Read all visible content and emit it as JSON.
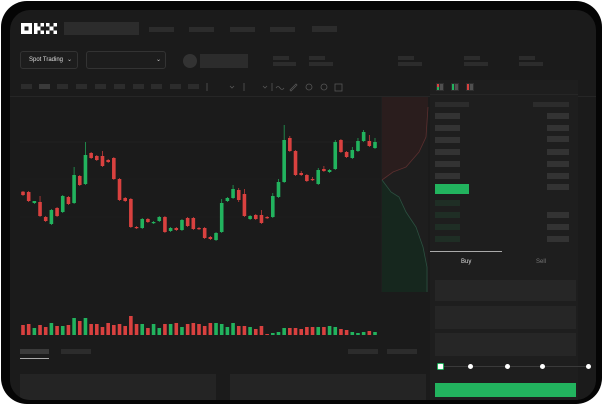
{
  "header": {
    "logo": "OKX"
  },
  "toolbar": {
    "market_selector": "Spot Trading"
  },
  "trade_form": {
    "tabs": [
      {
        "label": "Buy",
        "active": true
      },
      {
        "label": "Sell",
        "active": false
      }
    ],
    "slider_percent": 0,
    "slider_stops": 5
  },
  "colors": {
    "up": "#22b35e",
    "down": "#d9413f",
    "bg": "#1b1b1b",
    "accent": "#22b35e"
  },
  "orderbook": {
    "view_icons": [
      "book-both-icon",
      "book-bids-icon",
      "book-asks-icon"
    ]
  },
  "chart_data": {
    "type": "candlestick",
    "candles": [
      [
        118.3,
        119,
        114,
        115
      ],
      [
        118,
        119,
        108,
        109
      ],
      [
        107,
        109,
        106,
        109
      ],
      [
        108,
        114,
        93,
        94
      ],
      [
        93,
        94,
        88,
        89
      ],
      [
        86,
        101,
        85,
        100
      ],
      [
        102,
        103,
        93,
        94
      ],
      [
        98,
        115,
        97,
        114
      ],
      [
        113,
        114,
        105,
        106
      ],
      [
        107,
        143,
        106,
        135
      ],
      [
        134,
        135,
        124,
        125
      ],
      [
        126,
        168,
        125,
        155
      ],
      [
        157,
        158,
        151,
        152
      ],
      [
        154,
        155,
        149,
        150
      ],
      [
        154,
        159,
        143,
        144
      ],
      [
        150,
        151,
        147,
        148
      ],
      [
        152,
        153,
        130,
        131
      ],
      [
        131,
        132,
        109,
        110
      ],
      [
        112,
        113,
        108,
        109
      ],
      [
        111,
        112,
        82,
        83
      ],
      [
        83,
        84,
        81,
        82
      ],
      [
        82,
        92,
        81,
        91
      ],
      [
        91,
        92,
        87,
        88
      ],
      [
        87,
        89,
        86,
        88
      ],
      [
        89,
        94,
        88,
        93
      ],
      [
        93,
        94,
        77,
        78
      ],
      [
        79,
        83,
        78,
        82
      ],
      [
        82,
        83,
        79,
        80
      ],
      [
        80,
        91,
        79,
        90
      ],
      [
        92,
        93,
        83,
        84
      ],
      [
        92,
        93,
        80,
        81
      ],
      [
        82,
        83,
        80,
        81
      ],
      [
        82,
        83,
        71,
        72
      ],
      [
        73,
        74,
        70,
        71
      ],
      [
        70,
        78,
        69,
        77
      ],
      [
        78,
        111,
        77,
        107
      ],
      [
        109,
        113,
        108,
        112
      ],
      [
        112,
        125,
        111,
        121
      ],
      [
        120,
        122,
        108,
        110
      ],
      [
        116,
        121,
        93,
        94
      ],
      [
        91,
        95,
        90,
        94
      ],
      [
        95,
        96,
        90,
        91
      ],
      [
        95,
        100,
        86,
        87
      ],
      [
        93,
        94,
        91,
        92
      ],
      [
        93,
        117,
        92,
        114
      ],
      [
        113,
        131,
        112,
        128
      ],
      [
        128,
        185,
        127,
        170
      ],
      [
        172,
        174,
        158,
        159
      ],
      [
        159,
        160,
        134,
        135
      ],
      [
        137,
        139,
        134,
        135
      ],
      [
        135,
        136,
        128,
        129
      ],
      [
        131,
        133,
        129,
        130
      ],
      [
        126,
        142,
        125,
        140
      ],
      [
        141,
        144,
        138,
        139
      ],
      [
        138,
        141,
        137,
        140
      ],
      [
        141,
        170,
        140,
        168
      ],
      [
        170,
        171,
        157,
        158
      ],
      [
        158,
        159,
        152,
        153
      ],
      [
        152,
        163,
        151,
        160
      ],
      [
        159,
        172,
        158,
        169
      ],
      [
        169,
        180,
        168,
        178
      ],
      [
        169,
        175,
        163,
        164
      ],
      [
        162,
        172,
        161,
        168
      ]
    ],
    "volume": [
      10,
      11,
      7,
      10,
      8,
      12,
      9,
      9,
      10,
      17,
      14,
      17,
      11,
      11,
      8,
      12,
      10,
      11,
      9,
      19,
      11,
      11,
      7,
      11,
      7,
      11,
      11,
      12,
      8,
      11,
      12,
      11,
      9,
      12,
      12,
      11,
      8,
      12,
      9,
      9,
      8,
      6,
      9,
      1,
      2,
      3,
      7,
      7,
      7,
      6,
      8,
      8,
      8,
      8,
      9,
      8,
      6,
      5,
      3,
      2,
      3,
      4,
      3
    ]
  }
}
